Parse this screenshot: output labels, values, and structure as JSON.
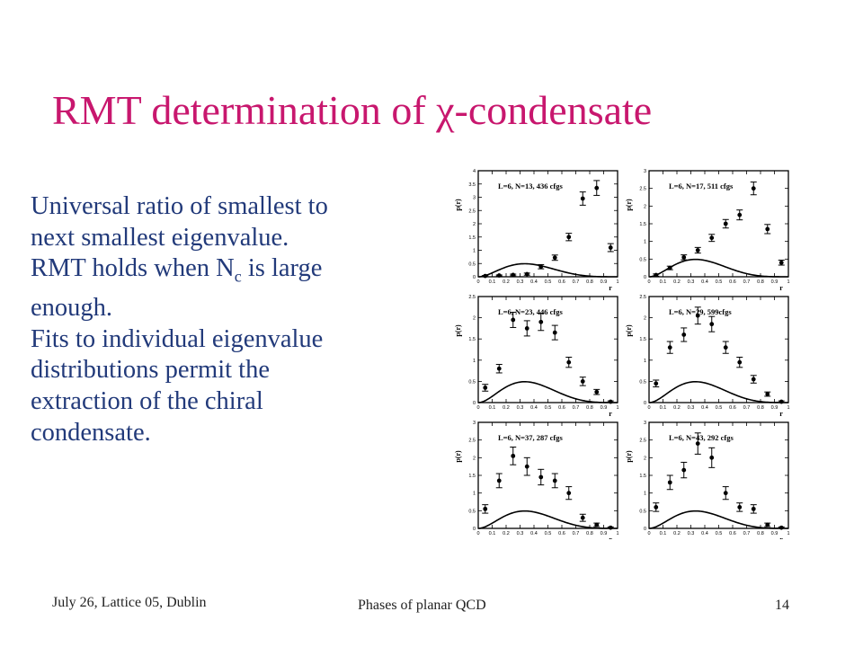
{
  "slide": {
    "title": "RMT determination of χ-condensate",
    "body_lines": [
      "Universal ratio of smallest to",
      "next smallest eigenvalue.",
      "RMT holds when N",
      "enough.",
      "Fits to individual eigenvalue",
      "distributions permit the",
      "extraction of the chiral",
      "condensate."
    ],
    "body_line3_sub": "c",
    "body_line3_tail": " is large",
    "footer_left": "July 26, Lattice 05, Dublin",
    "footer_center": "Phases of planar QCD",
    "footer_right": "14"
  },
  "chart_data": [
    {
      "type": "scatter",
      "title": "L=6, N=13, 436 cfgs",
      "xlabel": "r",
      "ylabel": "p(r)",
      "xlim": [
        0,
        1
      ],
      "ylim": [
        0,
        4
      ],
      "xticks": [
        "0",
        "0.1",
        "0.2",
        "0.3",
        "0.4",
        "0.5",
        "0.6",
        "0.7",
        "0.8",
        "0.9",
        "1"
      ],
      "yticks": [
        "0",
        "0.5",
        "1",
        "1.5",
        "2",
        "2.5",
        "3",
        "3.5",
        "4"
      ],
      "points": [
        [
          0.05,
          0.03,
          0.02
        ],
        [
          0.15,
          0.05,
          0.02
        ],
        [
          0.25,
          0.07,
          0.03
        ],
        [
          0.35,
          0.1,
          0.04
        ],
        [
          0.45,
          0.38,
          0.08
        ],
        [
          0.55,
          0.72,
          0.1
        ],
        [
          0.65,
          1.5,
          0.14
        ],
        [
          0.75,
          2.95,
          0.25
        ],
        [
          0.85,
          3.35,
          0.28
        ],
        [
          0.95,
          1.1,
          0.15
        ]
      ]
    },
    {
      "type": "scatter",
      "title": "L=6, N=17, 511 cfgs",
      "xlabel": "r",
      "ylabel": "p(r)",
      "xlim": [
        0,
        1
      ],
      "ylim": [
        0,
        3
      ],
      "xticks": [
        "0",
        "0.1",
        "0.2",
        "0.3",
        "0.4",
        "0.5",
        "0.6",
        "0.7",
        "0.8",
        "0.9",
        "1"
      ],
      "yticks": [
        "0",
        "0.5",
        "1",
        "1.5",
        "2",
        "2.5",
        "3"
      ],
      "points": [
        [
          0.05,
          0.05,
          0.03
        ],
        [
          0.15,
          0.25,
          0.05
        ],
        [
          0.25,
          0.55,
          0.07
        ],
        [
          0.35,
          0.75,
          0.08
        ],
        [
          0.45,
          1.1,
          0.1
        ],
        [
          0.55,
          1.5,
          0.12
        ],
        [
          0.65,
          1.75,
          0.14
        ],
        [
          0.75,
          2.5,
          0.18
        ],
        [
          0.85,
          1.35,
          0.13
        ],
        [
          0.95,
          0.4,
          0.07
        ]
      ]
    },
    {
      "type": "scatter",
      "title": "L=6, N=23, 446 cfgs",
      "xlabel": "r",
      "ylabel": "p(r)",
      "xlim": [
        0,
        1
      ],
      "ylim": [
        0,
        2.5
      ],
      "xticks": [
        "0",
        "0.1",
        "0.2",
        "0.3",
        "0.4",
        "0.5",
        "0.6",
        "0.7",
        "0.8",
        "0.9",
        "1"
      ],
      "yticks": [
        "0",
        "0.5",
        "1",
        "1.5",
        "2",
        "2.5"
      ],
      "points": [
        [
          0.05,
          0.35,
          0.08
        ],
        [
          0.15,
          0.8,
          0.1
        ],
        [
          0.25,
          1.95,
          0.18
        ],
        [
          0.35,
          1.75,
          0.18
        ],
        [
          0.45,
          1.9,
          0.2
        ],
        [
          0.55,
          1.65,
          0.17
        ],
        [
          0.65,
          0.95,
          0.12
        ],
        [
          0.75,
          0.5,
          0.1
        ],
        [
          0.85,
          0.25,
          0.06
        ],
        [
          0.95,
          0.02,
          0.02
        ]
      ]
    },
    {
      "type": "scatter",
      "title": "L=6, N=29, 599cfgs",
      "xlabel": "r",
      "ylabel": "p(r)",
      "xlim": [
        0,
        1
      ],
      "ylim": [
        0,
        2.5
      ],
      "xticks": [
        "0",
        "0.1",
        "0.2",
        "0.3",
        "0.4",
        "0.5",
        "0.6",
        "0.7",
        "0.8",
        "0.9",
        "1"
      ],
      "yticks": [
        "0",
        "0.5",
        "1",
        "1.5",
        "2",
        "2.5"
      ],
      "points": [
        [
          0.05,
          0.45,
          0.08
        ],
        [
          0.15,
          1.3,
          0.14
        ],
        [
          0.25,
          1.6,
          0.16
        ],
        [
          0.35,
          2.05,
          0.2
        ],
        [
          0.45,
          1.85,
          0.18
        ],
        [
          0.55,
          1.3,
          0.14
        ],
        [
          0.65,
          0.95,
          0.12
        ],
        [
          0.75,
          0.55,
          0.09
        ],
        [
          0.85,
          0.2,
          0.05
        ],
        [
          0.95,
          0.02,
          0.02
        ]
      ]
    },
    {
      "type": "scatter",
      "title": "L=6, N=37, 287 cfgs",
      "xlabel": "r",
      "ylabel": "p(r)",
      "xlim": [
        0,
        1
      ],
      "ylim": [
        0,
        3
      ],
      "xticks": [
        "0",
        "0.1",
        "0.2",
        "0.3",
        "0.4",
        "0.5",
        "0.6",
        "0.7",
        "0.8",
        "0.9",
        "1"
      ],
      "yticks": [
        "0",
        "0.5",
        "1",
        "1.5",
        "2",
        "2.5",
        "3"
      ],
      "points": [
        [
          0.05,
          0.55,
          0.12
        ],
        [
          0.15,
          1.35,
          0.2
        ],
        [
          0.25,
          2.05,
          0.25
        ],
        [
          0.35,
          1.75,
          0.25
        ],
        [
          0.45,
          1.45,
          0.22
        ],
        [
          0.55,
          1.35,
          0.2
        ],
        [
          0.65,
          1.0,
          0.18
        ],
        [
          0.75,
          0.3,
          0.1
        ],
        [
          0.85,
          0.1,
          0.05
        ],
        [
          0.95,
          0.02,
          0.02
        ]
      ]
    },
    {
      "type": "scatter",
      "title": "L=6, N=43, 292 cfgs",
      "xlabel": "r",
      "ylabel": "p(r)",
      "xlim": [
        0,
        1
      ],
      "ylim": [
        0,
        3
      ],
      "xticks": [
        "0",
        "0.1",
        "0.2",
        "0.3",
        "0.4",
        "0.5",
        "0.6",
        "0.7",
        "0.8",
        "0.9",
        "1"
      ],
      "yticks": [
        "0",
        "0.5",
        "1",
        "1.5",
        "2",
        "2.5",
        "3"
      ],
      "points": [
        [
          0.05,
          0.6,
          0.12
        ],
        [
          0.15,
          1.3,
          0.2
        ],
        [
          0.25,
          1.65,
          0.22
        ],
        [
          0.35,
          2.4,
          0.3
        ],
        [
          0.45,
          2.0,
          0.28
        ],
        [
          0.55,
          1.0,
          0.18
        ],
        [
          0.65,
          0.6,
          0.12
        ],
        [
          0.75,
          0.55,
          0.12
        ],
        [
          0.85,
          0.1,
          0.05
        ],
        [
          0.95,
          0.02,
          0.02
        ]
      ]
    }
  ]
}
